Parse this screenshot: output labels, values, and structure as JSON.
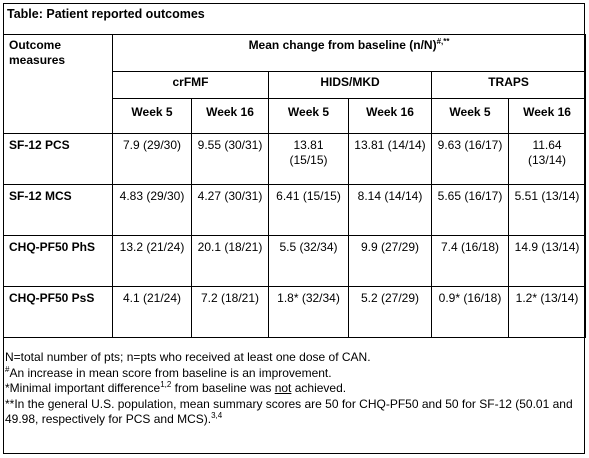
{
  "title": "Table: Patient reported outcomes",
  "header": {
    "outcome_col": "Outcome measures",
    "main": "Mean change from baseline (n/N)",
    "main_sup": "#,**",
    "groups": [
      "crFMF",
      "HIDS/MKD",
      "TRAPS"
    ],
    "weeks": [
      "Week 5",
      "Week 16",
      "Week 5",
      "Week 16",
      "Week 5",
      "Week 16"
    ]
  },
  "rows": [
    {
      "measure": "SF-12 PCS",
      "values": [
        "7.9 (29/30)",
        "9.55 (30/31)",
        "13.81 (15/15)",
        "13.81 (14/14)",
        "9.63 (16/17)",
        "11.64 (13/14)"
      ]
    },
    {
      "measure": "SF-12 MCS",
      "values": [
        "4.83 (29/30)",
        "4.27 (30/31)",
        "6.41 (15/15)",
        "8.14 (14/14)",
        "5.65 (16/17)",
        "5.51 (13/14)"
      ]
    },
    {
      "measure": "CHQ-PF50 PhS",
      "values": [
        "13.2 (21/24)",
        "20.1 (18/21)",
        "5.5 (32/34)",
        "9.9 (27/29)",
        "7.4 (16/18)",
        "14.9 (13/14)"
      ]
    },
    {
      "measure": "CHQ-PF50 PsS",
      "values": [
        "4.1 (21/24)",
        "7.2 (18/21)",
        "1.8* (32/34)",
        "5.2 (27/29)",
        "0.9* (16/18)",
        "1.2* (13/14)"
      ]
    }
  ],
  "notes": {
    "n1": "N=total number of pts; n=pts who received at least one dose of CAN.",
    "n2_sup": "#",
    "n2": "An increase in mean score from baseline is an improvement.",
    "n3_a": "*Minimal important difference",
    "n3_sup": "1,2",
    "n3_b": " from baseline was ",
    "n3_not": "not",
    "n3_c": " achieved.",
    "n4": "**In the general U.S. population, mean summary scores are 50 for CHQ-PF50 and 50 for SF-12 (50.01 and",
    "n5": "49.98, respectively for PCS and MCS).",
    "n5_sup": "3,4"
  }
}
